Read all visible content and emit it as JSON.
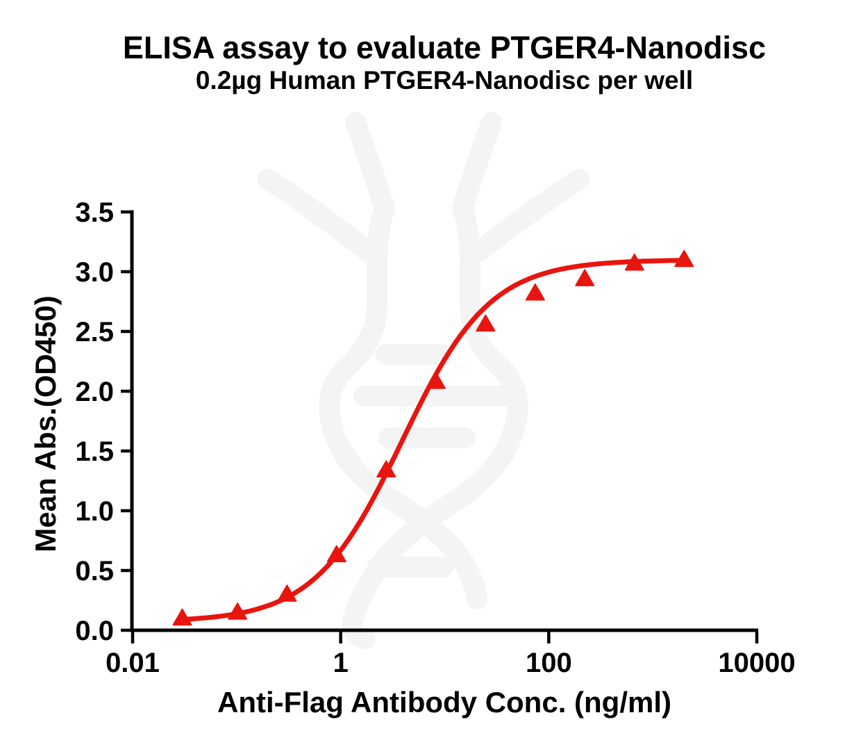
{
  "header": {
    "title": "ELISA assay to evaluate PTGER4-Nanodisc",
    "subtitle": "0.2µg Human PTGER4-Nanodisc per well"
  },
  "chart_data": {
    "type": "scatter",
    "title": "ELISA assay to evaluate PTGER4-Nanodisc",
    "subtitle": "0.2µg Human PTGER4-Nanodisc per well",
    "xlabel": "Anti-Flag Antibody Conc. (ng/ml)",
    "ylabel": "Mean Abs.(OD450)",
    "x_scale": "log10",
    "xlim": [
      0.01,
      10000
    ],
    "ylim": [
      0.0,
      3.5
    ],
    "x_ticks": [
      0.01,
      1,
      100,
      10000
    ],
    "x_tick_labels": [
      "0.01",
      "1",
      "100",
      "10000"
    ],
    "y_ticks": [
      0.0,
      0.5,
      1.0,
      1.5,
      2.0,
      2.5,
      3.0,
      3.5
    ],
    "y_tick_labels": [
      "0.0",
      "0.5",
      "1.0",
      "1.5",
      "2.0",
      "2.5",
      "3.0",
      "3.5"
    ],
    "grid": false,
    "legend_position": "none",
    "series": [
      {
        "name": "Human PTGER4-Nanodisc",
        "marker": "triangle-up",
        "x": [
          0.03,
          0.102,
          0.305,
          0.914,
          2.74,
          8.23,
          24.7,
          74.1,
          222,
          667,
          2000
        ],
        "y": [
          0.1,
          0.15,
          0.3,
          0.63,
          1.34,
          2.08,
          2.56,
          2.82,
          2.94,
          3.07,
          3.1
        ]
      }
    ],
    "fit_curve": {
      "model": "4PL",
      "bottom": 0.07,
      "top": 3.1,
      "ec50": 3.9,
      "hill": 1.03
    },
    "colors": {
      "series": "#e8150e",
      "axis": "#000000",
      "text": "#000000",
      "watermark": "#f4f4f4"
    },
    "watermark": "dna-helix-antibody-logo"
  }
}
